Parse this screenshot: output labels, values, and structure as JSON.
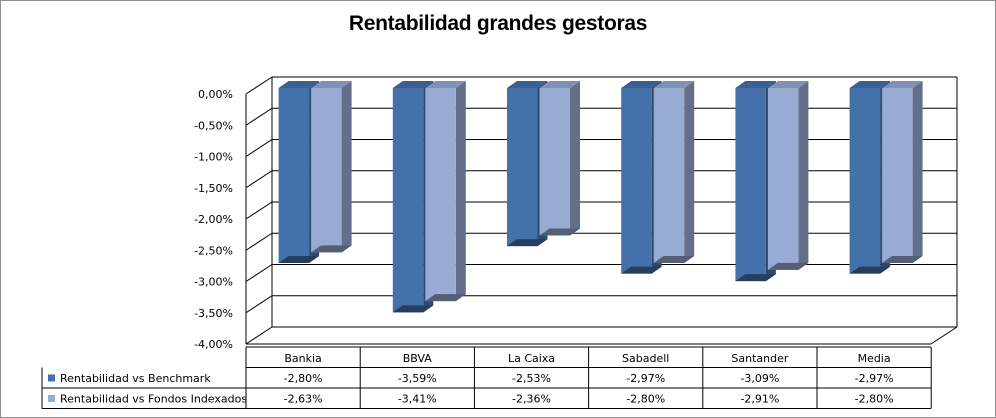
{
  "chart_data": {
    "type": "bar",
    "title": "Rentabilidad grandes gestoras",
    "categories": [
      "Bankia",
      "BBVA",
      "La Caixa",
      "Sabadell",
      "Santander",
      "Media"
    ],
    "series": [
      {
        "name": "Rentabilidad vs Benchmark",
        "values": [
          -2.8,
          -3.59,
          -2.53,
          -2.97,
          -3.09,
          -2.97
        ],
        "labels": [
          "-2,80%",
          "-3,59%",
          "-2,53%",
          "-2,97%",
          "-3,09%",
          "-2,97%"
        ],
        "color": "#4471a9"
      },
      {
        "name": "Rentabilidad vs Fondos Indexados",
        "values": [
          -2.63,
          -3.41,
          -2.36,
          -2.8,
          -2.91,
          -2.8
        ],
        "labels": [
          "-2,63%",
          "-3,41%",
          "-2,36%",
          "-2,80%",
          "-2,91%",
          "-2,80%"
        ],
        "color": "#98abd3"
      }
    ],
    "ylim": [
      -4.0,
      0.0
    ],
    "yticks": [
      "0,00%",
      "-0,50%",
      "-1,00%",
      "-1,50%",
      "-2,00%",
      "-2,50%",
      "-3,00%",
      "-3,50%",
      "-4,00%"
    ],
    "data_table": true,
    "grid": true
  }
}
